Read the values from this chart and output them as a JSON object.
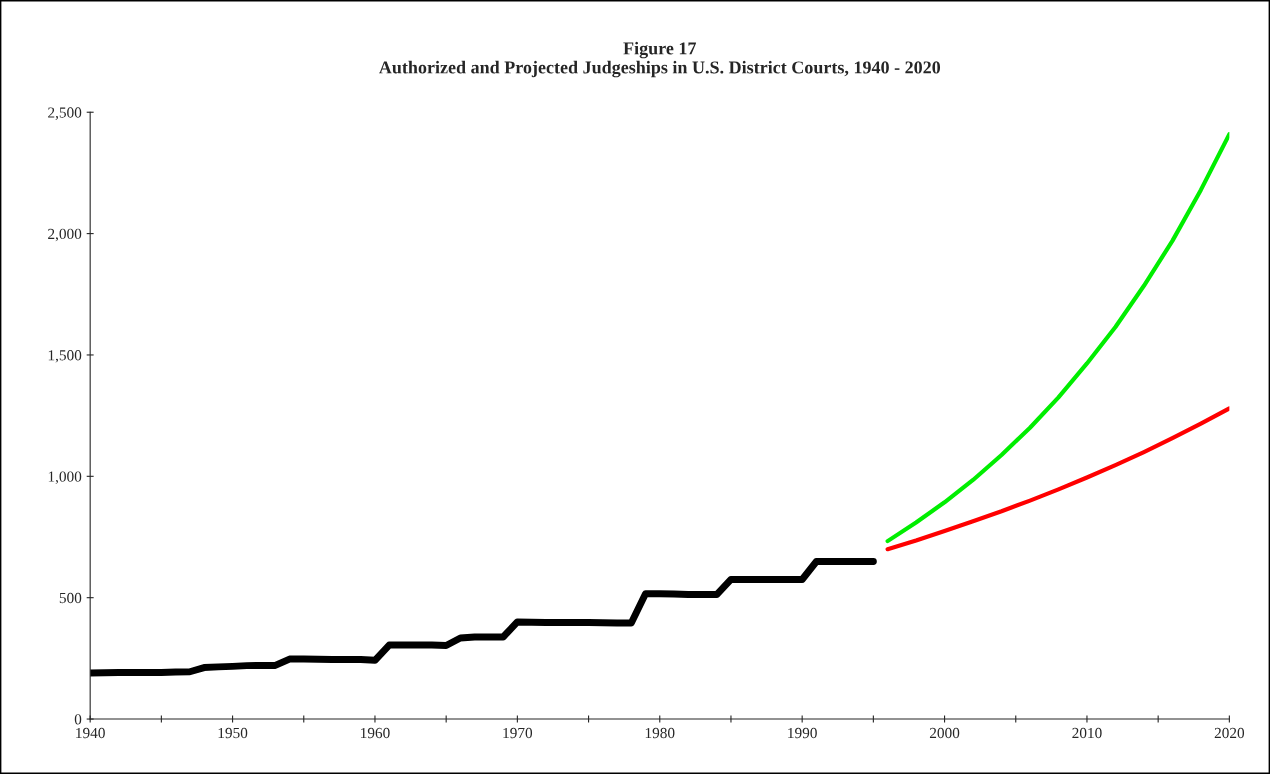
{
  "chart_data": {
    "type": "line",
    "title": "Figure 17\nAuthorized and Projected Judgeships in U.S. District Courts, 1940 - 2020",
    "series": [
      {
        "color": "#000000",
        "x": [
          1940,
          1941,
          1942,
          1943,
          1944,
          1945,
          1946,
          1947,
          1948,
          1949,
          1950,
          1951,
          1952,
          1953,
          1954,
          1955,
          1956,
          1957,
          1958,
          1959,
          1960,
          1961,
          1962,
          1963,
          1964,
          1965,
          1966,
          1967,
          1968,
          1969,
          1970,
          1971,
          1972,
          1973,
          1974,
          1975,
          1976,
          1977,
          1978,
          1979,
          1980,
          1981,
          1982,
          1983,
          1984,
          1985,
          1986,
          1987,
          1988,
          1989,
          1990,
          1991,
          1992,
          1993,
          1994,
          1995
        ],
        "values": [
          190,
          191,
          192,
          192,
          192,
          192,
          194,
          195,
          212,
          215,
          217,
          220,
          221,
          221,
          247,
          247,
          246,
          245,
          245,
          245,
          242,
          305,
          305,
          305,
          305,
          303,
          334,
          338,
          338,
          338,
          400,
          399,
          398,
          398,
          398,
          398,
          397,
          396,
          396,
          516,
          516,
          515,
          513,
          513,
          513,
          575,
          575,
          575,
          575,
          575,
          575,
          649,
          649,
          649,
          649,
          649
        ]
      },
      {
        "color": "#00ee00",
        "x": [
          1996,
          1998,
          2000,
          2002,
          2004,
          2006,
          2008,
          2010,
          2012,
          2014,
          2016,
          2018,
          2020
        ],
        "values": [
          733,
          810,
          893,
          985,
          1088,
          1200,
          1325,
          1465,
          1615,
          1785,
          1970,
          2180,
          2410
        ]
      },
      {
        "color": "#ff0000",
        "x": [
          1996,
          1998,
          2000,
          2002,
          2004,
          2006,
          2008,
          2010,
          2012,
          2014,
          2016,
          2018,
          2020
        ],
        "values": [
          700,
          736,
          775,
          815,
          856,
          900,
          946,
          995,
          1046,
          1100,
          1157,
          1217,
          1280
        ]
      }
    ],
    "xlim": [
      1940,
      2020
    ],
    "ylim": [
      0,
      2500
    ],
    "xticks": [
      1940,
      {
        "value": 1945,
        "label": null
      },
      1950,
      {
        "value": 1955,
        "label": null
      },
      1960,
      {
        "value": 1965,
        "label": null
      },
      1970,
      {
        "value": 1975,
        "label": null
      },
      1980,
      {
        "value": 1985,
        "label": null
      },
      1990,
      {
        "value": 1995,
        "label": null
      },
      2000,
      {
        "value": 2005,
        "label": null
      },
      2010,
      {
        "value": 2015,
        "label": null
      },
      2020
    ],
    "yticks": [
      0,
      500,
      {
        "value": 1000,
        "label": "1,000"
      },
      {
        "value": 1500,
        "label": "1,500"
      },
      {
        "value": 2000,
        "label": "2,000"
      },
      {
        "value": 2500,
        "label": "2,500"
      }
    ],
    "grid": false,
    "marker": "none",
    "line_style": "solid"
  }
}
